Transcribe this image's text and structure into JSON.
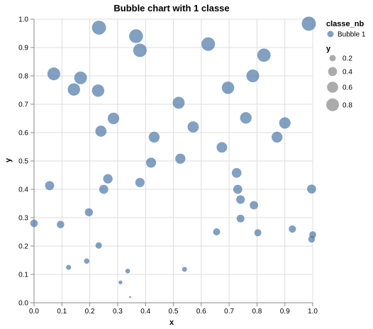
{
  "chart_data": {
    "type": "scatter",
    "title": "Bubble chart with 1 classe",
    "xlabel": "x",
    "ylabel": "y",
    "xlim": [
      0,
      1
    ],
    "ylim": [
      0,
      1
    ],
    "x_ticks": [
      "0.0",
      "0.1",
      "0.2",
      "0.3",
      "0.4",
      "0.5",
      "0.6",
      "0.7",
      "0.8",
      "0.9",
      "1.0"
    ],
    "y_ticks": [
      "0.0",
      "0.1",
      "0.2",
      "0.3",
      "0.4",
      "0.5",
      "0.6",
      "0.7",
      "0.8",
      "0.9",
      "1.0"
    ],
    "grid": true,
    "size_encoding": "y",
    "color": "#4c78a8",
    "legend": {
      "placement": "right",
      "color_title": "classe_nb",
      "color_entries": [
        "Bubble 1"
      ],
      "size_title": "y",
      "size_values": [
        "0.2",
        "0.4",
        "0.6",
        "0.8"
      ]
    },
    "series": [
      {
        "name": "Bubble 1",
        "points": [
          {
            "x": 0.233,
            "y": 0.97
          },
          {
            "x": 0.366,
            "y": 0.94
          },
          {
            "x": 0.38,
            "y": 0.89
          },
          {
            "x": 0.625,
            "y": 0.912
          },
          {
            "x": 0.986,
            "y": 0.984
          },
          {
            "x": 0.825,
            "y": 0.873
          },
          {
            "x": 0.071,
            "y": 0.807
          },
          {
            "x": 0.167,
            "y": 0.793
          },
          {
            "x": 0.143,
            "y": 0.752
          },
          {
            "x": 0.23,
            "y": 0.748
          },
          {
            "x": 0.696,
            "y": 0.758
          },
          {
            "x": 0.785,
            "y": 0.8
          },
          {
            "x": 0.519,
            "y": 0.705
          },
          {
            "x": 0.285,
            "y": 0.65
          },
          {
            "x": 0.76,
            "y": 0.652
          },
          {
            "x": 0.9,
            "y": 0.634
          },
          {
            "x": 0.24,
            "y": 0.605
          },
          {
            "x": 0.431,
            "y": 0.584
          },
          {
            "x": 0.571,
            "y": 0.62
          },
          {
            "x": 0.872,
            "y": 0.584
          },
          {
            "x": 0.674,
            "y": 0.548
          },
          {
            "x": 0.525,
            "y": 0.508
          },
          {
            "x": 0.42,
            "y": 0.494
          },
          {
            "x": 0.727,
            "y": 0.458
          },
          {
            "x": 0.265,
            "y": 0.437
          },
          {
            "x": 0.38,
            "y": 0.424
          },
          {
            "x": 0.056,
            "y": 0.413
          },
          {
            "x": 0.25,
            "y": 0.4
          },
          {
            "x": 0.731,
            "y": 0.4
          },
          {
            "x": 0.996,
            "y": 0.401
          },
          {
            "x": 0.741,
            "y": 0.364
          },
          {
            "x": 0.789,
            "y": 0.344
          },
          {
            "x": 0.197,
            "y": 0.319
          },
          {
            "x": 0.741,
            "y": 0.297
          },
          {
            "x": 0.0,
            "y": 0.28
          },
          {
            "x": 0.095,
            "y": 0.276
          },
          {
            "x": 0.655,
            "y": 0.25
          },
          {
            "x": 0.803,
            "y": 0.247
          },
          {
            "x": 0.927,
            "y": 0.26
          },
          {
            "x": 1.0,
            "y": 0.24
          },
          {
            "x": 0.996,
            "y": 0.224
          },
          {
            "x": 0.232,
            "y": 0.202
          },
          {
            "x": 0.189,
            "y": 0.147
          },
          {
            "x": 0.124,
            "y": 0.125
          },
          {
            "x": 0.336,
            "y": 0.112
          },
          {
            "x": 0.54,
            "y": 0.118
          },
          {
            "x": 0.31,
            "y": 0.072
          },
          {
            "x": 0.345,
            "y": 0.02
          }
        ]
      }
    ]
  }
}
